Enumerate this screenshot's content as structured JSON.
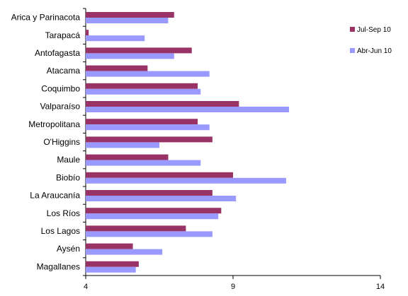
{
  "chart_data": {
    "type": "bar",
    "orientation": "horizontal",
    "categories": [
      "Arica y Parinacota",
      "Tarapacá",
      "Antofagasta",
      "Atacama",
      "Coquimbo",
      "Valparaíso",
      "Metropolitana",
      "O'Higgins",
      "Maule",
      "Biobío",
      "La Araucanía",
      "Los Ríos",
      "Los Lagos",
      "Aysén",
      "Magallanes"
    ],
    "series": [
      {
        "name": "Jul-Sep 10",
        "color": "#993366",
        "values": [
          7.0,
          4.1,
          7.6,
          6.1,
          7.8,
          9.2,
          7.8,
          8.3,
          6.8,
          9.0,
          8.3,
          8.6,
          7.4,
          5.6,
          5.8
        ]
      },
      {
        "name": "Abr-Jun 10",
        "color": "#9999ff",
        "values": [
          6.8,
          6.0,
          7.0,
          8.2,
          7.9,
          10.9,
          8.2,
          6.5,
          7.9,
          10.8,
          9.1,
          8.5,
          8.3,
          6.6,
          5.7
        ]
      }
    ],
    "xlim": [
      4,
      14
    ],
    "xticks": [
      "4",
      "9",
      "14"
    ],
    "legend_position": "top-right",
    "grid": false
  }
}
